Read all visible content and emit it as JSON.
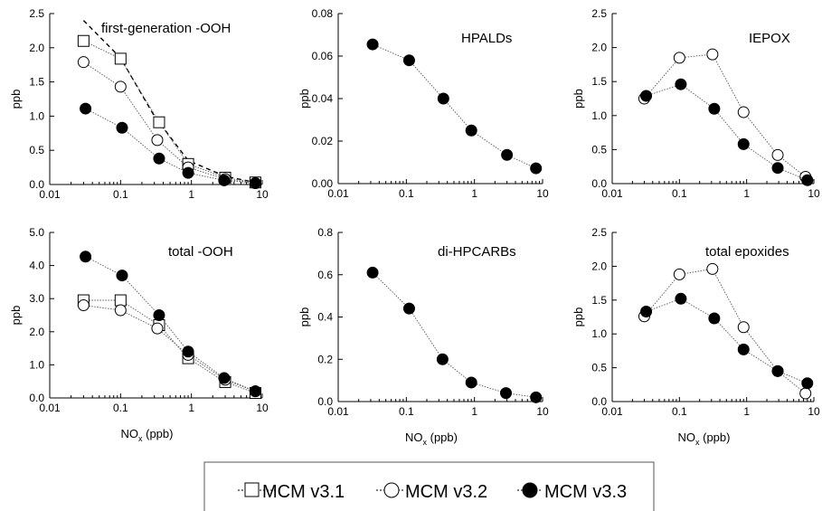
{
  "chart_data": [
    {
      "type": "line",
      "title": "first-generation -OOH",
      "ylabel": "ppb",
      "xlabel": "",
      "xscale": "log",
      "xlim": [
        0.01,
        10
      ],
      "ylim": [
        0,
        2.5
      ],
      "xticks": [
        "0.01",
        "0.1",
        "1",
        "10"
      ],
      "yticks": [
        "0.0",
        "0.5",
        "1.0",
        "1.5",
        "2.0",
        "2.5"
      ],
      "series": [
        {
          "name": "",
          "style": "dashed",
          "x": [
            0.03,
            0.1,
            0.3,
            0.9,
            3,
            8
          ],
          "y": [
            2.4,
            1.85,
            1.0,
            0.35,
            0.12,
            0.03
          ]
        },
        {
          "name": "MCM v3.1",
          "marker": "square",
          "x": [
            0.03,
            0.1,
            0.35,
            0.9,
            3,
            8
          ],
          "y": [
            2.1,
            1.84,
            0.91,
            0.3,
            0.1,
            0.03
          ]
        },
        {
          "name": "MCM v3.2",
          "marker": "open-circle",
          "x": [
            0.03,
            0.1,
            0.33,
            0.9,
            3,
            8
          ],
          "y": [
            1.79,
            1.43,
            0.65,
            0.25,
            0.08,
            0.02
          ]
        },
        {
          "name": "MCM v3.3",
          "marker": "filled-circle",
          "x": [
            0.032,
            0.105,
            0.35,
            0.9,
            2.9,
            8
          ],
          "y": [
            1.11,
            0.83,
            0.38,
            0.17,
            0.06,
            0.02
          ]
        }
      ]
    },
    {
      "type": "line",
      "title": "HPALDs",
      "ylabel": "ppb",
      "xlabel": "",
      "xscale": "log",
      "xlim": [
        0.01,
        10
      ],
      "ylim": [
        0,
        0.08
      ],
      "xticks": [
        "0.01",
        "0.1",
        "1",
        "10"
      ],
      "yticks": [
        "0.00",
        "0.02",
        "0.04",
        "0.06",
        "0.08"
      ],
      "series": [
        {
          "name": "MCM v3.3",
          "marker": "filled-circle",
          "x": [
            0.032,
            0.11,
            0.35,
            0.9,
            3,
            8
          ],
          "y": [
            0.0655,
            0.058,
            0.04,
            0.025,
            0.0135,
            0.0072
          ]
        }
      ]
    },
    {
      "type": "line",
      "title": "IEPOX",
      "ylabel": "ppb",
      "xlabel": "",
      "xscale": "log",
      "xlim": [
        0.01,
        10
      ],
      "ylim": [
        0,
        2.5
      ],
      "xticks": [
        "0.01",
        "0.1",
        "1",
        "10"
      ],
      "yticks": [
        "0.0",
        "0.5",
        "1.0",
        "1.5",
        "2.0",
        "2.5"
      ],
      "series": [
        {
          "name": "MCM v3.2",
          "marker": "open-circle",
          "x": [
            0.03,
            0.1,
            0.31,
            0.9,
            2.9,
            7.5
          ],
          "y": [
            1.25,
            1.85,
            1.9,
            1.05,
            0.42,
            0.1
          ]
        },
        {
          "name": "MCM v3.3",
          "marker": "filled-circle",
          "x": [
            0.032,
            0.105,
            0.33,
            0.9,
            2.9,
            8
          ],
          "y": [
            1.29,
            1.46,
            1.1,
            0.58,
            0.23,
            0.05
          ]
        }
      ]
    },
    {
      "type": "line",
      "title": "total -OOH",
      "ylabel": "ppb",
      "xlabel": "NOx (ppb)",
      "xscale": "log",
      "xlim": [
        0.01,
        10
      ],
      "ylim": [
        0,
        5
      ],
      "xticks": [
        "0.01",
        "0.1",
        "1",
        "10"
      ],
      "yticks": [
        "0.0",
        "1.0",
        "2.0",
        "3.0",
        "4.0",
        "5.0"
      ],
      "series": [
        {
          "name": "MCM v3.1",
          "marker": "square",
          "x": [
            0.03,
            0.1,
            0.35,
            0.9,
            3,
            8
          ],
          "y": [
            2.95,
            2.95,
            2.2,
            1.2,
            0.48,
            0.15
          ]
        },
        {
          "name": "MCM v3.2",
          "marker": "open-circle",
          "x": [
            0.03,
            0.1,
            0.33,
            0.9,
            3,
            8
          ],
          "y": [
            2.8,
            2.65,
            2.1,
            1.3,
            0.55,
            0.2
          ]
        },
        {
          "name": "MCM v3.3",
          "marker": "filled-circle",
          "x": [
            0.032,
            0.105,
            0.35,
            0.9,
            2.9,
            8
          ],
          "y": [
            4.27,
            3.7,
            2.5,
            1.4,
            0.6,
            0.2
          ]
        }
      ]
    },
    {
      "type": "line",
      "title": "di-HPCARBs",
      "ylabel": "ppb",
      "xlabel": "NOx (ppb)",
      "xscale": "log",
      "xlim": [
        0.01,
        10
      ],
      "ylim": [
        0,
        0.8
      ],
      "xticks": [
        "0.01",
        "0.1",
        "1",
        "10"
      ],
      "yticks": [
        "0.0",
        "0.2",
        "0.4",
        "0.6",
        "0.8"
      ],
      "series": [
        {
          "name": "MCM v3.3",
          "marker": "filled-circle",
          "x": [
            0.032,
            0.11,
            0.34,
            0.9,
            2.9,
            8
          ],
          "y": [
            0.61,
            0.44,
            0.2,
            0.09,
            0.04,
            0.02
          ]
        }
      ]
    },
    {
      "type": "line",
      "title": "total epoxides",
      "ylabel": "ppb",
      "xlabel": "NOx (ppb)",
      "xscale": "log",
      "xlim": [
        0.01,
        10
      ],
      "ylim": [
        0,
        2.5
      ],
      "xticks": [
        "0.01",
        "0.1",
        "1",
        "10"
      ],
      "yticks": [
        "0.0",
        "0.5",
        "1.0",
        "1.5",
        "2.0",
        "2.5"
      ],
      "series": [
        {
          "name": "MCM v3.2",
          "marker": "open-circle",
          "x": [
            0.03,
            0.1,
            0.31,
            0.9,
            2.9,
            7.5
          ],
          "y": [
            1.26,
            1.88,
            1.96,
            1.1,
            0.45,
            0.12
          ]
        },
        {
          "name": "MCM v3.3",
          "marker": "filled-circle",
          "x": [
            0.032,
            0.105,
            0.33,
            0.9,
            2.9,
            8
          ],
          "y": [
            1.33,
            1.52,
            1.23,
            0.77,
            0.45,
            0.27
          ]
        }
      ]
    }
  ],
  "legend": {
    "placement": "bottom-center",
    "entries": [
      {
        "label": "MCM v3.1",
        "marker": "square"
      },
      {
        "label": "MCM v3.2",
        "marker": "open-circle"
      },
      {
        "label": "MCM v3.3",
        "marker": "filled-circle"
      }
    ]
  },
  "colors": {
    "line": "#000000",
    "marker_fill": "#000000",
    "open_fill": "#ffffff"
  }
}
